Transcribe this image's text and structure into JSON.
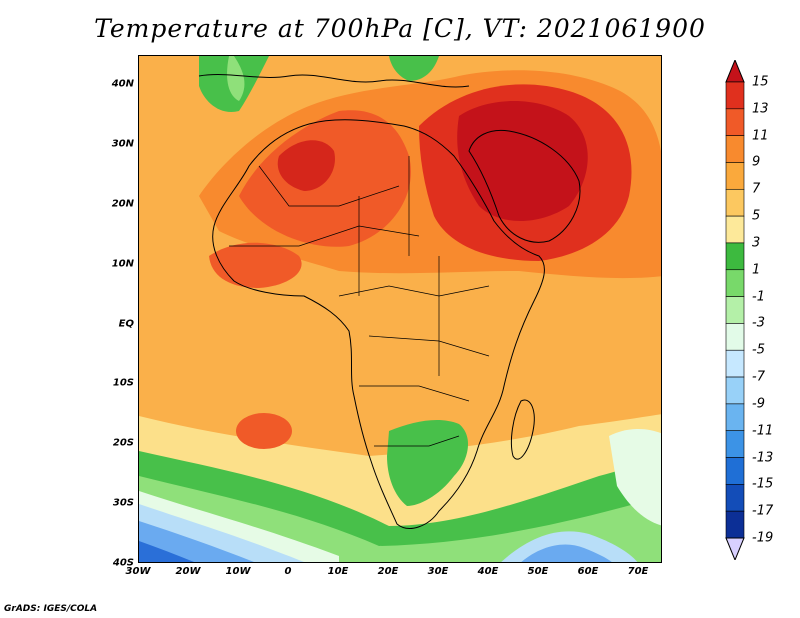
{
  "title": "Temperature at 700hPa [C], VT: 2021061900",
  "credit": "GrADS: IGES/COLA",
  "lat_ticks": [
    "40N",
    "30N",
    "20N",
    "10N",
    "EQ",
    "10S",
    "20S",
    "30S",
    "40S"
  ],
  "lon_ticks": [
    "30W",
    "20W",
    "10W",
    "0",
    "10E",
    "20E",
    "30E",
    "40E",
    "50E",
    "60E",
    "70E"
  ],
  "colorbar": {
    "labels": [
      "15",
      "13",
      "11",
      "9",
      "7",
      "5",
      "3",
      "1",
      "-1",
      "-3",
      "-5",
      "-7",
      "-9",
      "-11",
      "-13",
      "-15",
      "-17",
      "-19"
    ],
    "colors": [
      "#c4121a",
      "#e0301e",
      "#f05a28",
      "#f88a2e",
      "#faa93c",
      "#fcc860",
      "#fde99a",
      "#3dba3f",
      "#78d96a",
      "#b4f0a8",
      "#e2fbe8",
      "#c6e8ff",
      "#98d1f8",
      "#6ab4f0",
      "#3c93e6",
      "#1f6fd6",
      "#134db8",
      "#0c2f96",
      "#0a1a6a"
    ],
    "arrow_top_color": "#c4121a",
    "arrow_bottom_color": "#d8d0ff"
  },
  "map_colors": {
    "ocean_warm": "#fab04a",
    "mid_orange": "#f88a2e",
    "hot": "#f05a28",
    "hottest": "#d5261b",
    "yellow": "#fce08a",
    "green": "#48c04a",
    "light_green": "#8fe07a",
    "pale": "#e6fbe6",
    "light_blue": "#b8def8",
    "blue": "#6aaaf0",
    "deep_blue": "#2a6fd8"
  }
}
